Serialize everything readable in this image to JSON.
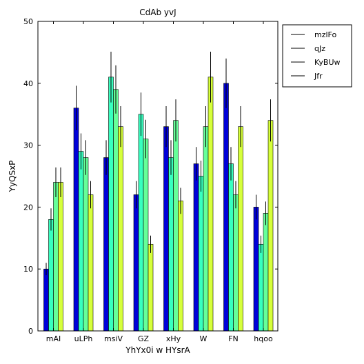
{
  "chart_data": {
    "type": "bar",
    "title": "CdAb yvJ",
    "xlabel": "YhYx0i w HYsrA",
    "ylabel": "YyQSxP",
    "ylim": [
      0,
      50
    ],
    "yticks": [
      0,
      10,
      20,
      30,
      40,
      50
    ],
    "grid": false,
    "legend_position": "top-right",
    "categories": [
      "mAI",
      "uLPh",
      "msiV",
      "GZ",
      "xHy",
      "W",
      "FN",
      "hqoo"
    ],
    "series": [
      {
        "name": "mzlFo",
        "color": "#0000d8",
        "values": [
          10,
          36,
          28,
          22,
          33,
          27,
          40,
          20
        ],
        "errors": [
          1.0,
          3.6,
          2.8,
          2.2,
          3.3,
          2.7,
          4.0,
          2.0
        ]
      },
      {
        "name": "qJz",
        "color": "#38ffbf",
        "values": [
          18,
          29,
          41,
          35,
          28,
          25,
          27,
          14
        ],
        "errors": [
          1.8,
          2.9,
          4.1,
          3.5,
          2.8,
          2.5,
          2.7,
          1.4
        ]
      },
      {
        "name": "KyBUw",
        "color": "#66ff99",
        "values": [
          24,
          28,
          39,
          31,
          34,
          33,
          22,
          19
        ],
        "errors": [
          2.4,
          2.8,
          3.9,
          3.1,
          3.4,
          3.3,
          2.2,
          1.9
        ]
      },
      {
        "name": "Jfr",
        "color": "#d6ff3a",
        "values": [
          24,
          22,
          33,
          14,
          21,
          41,
          33,
          34
        ],
        "errors": [
          2.4,
          2.2,
          3.3,
          1.4,
          2.1,
          4.1,
          3.3,
          3.4
        ]
      }
    ]
  }
}
